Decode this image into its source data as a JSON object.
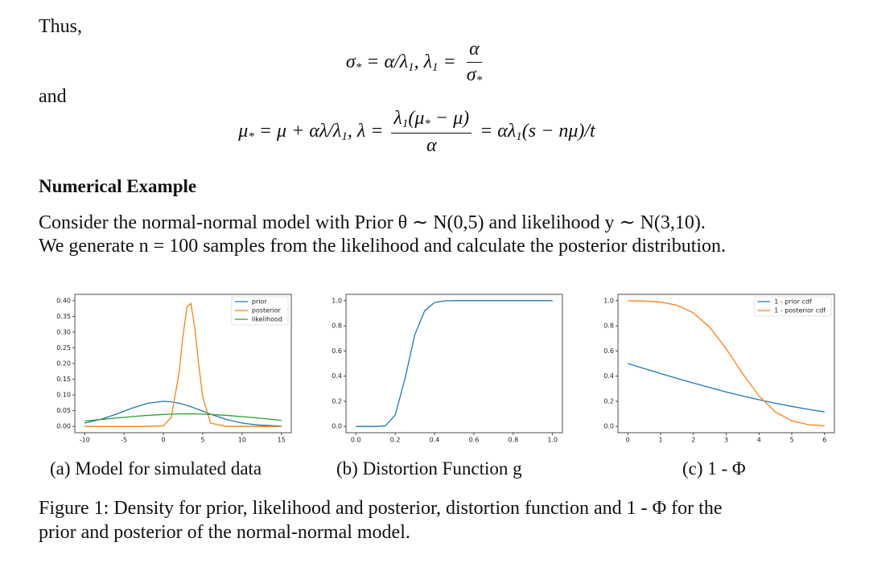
{
  "document": {
    "intro": "Thus,",
    "eq1": [
      {
        "text": "σ"
      },
      {
        "sub": "*"
      },
      {
        "text": " = α/λ"
      },
      {
        "sub": "1"
      },
      {
        "text": ",    λ"
      },
      {
        "sub": "1"
      },
      {
        "text": " = "
      },
      {
        "frac": {
          "num": [
            {
              "text": "α"
            }
          ],
          "den": [
            {
              "text": "σ"
            },
            {
              "sub": "*"
            }
          ]
        }
      }
    ],
    "connector": "and",
    "eq2": [
      {
        "text": "μ"
      },
      {
        "sub": "*"
      },
      {
        "text": " = μ + αλ/λ"
      },
      {
        "sub": "1"
      },
      {
        "text": ",    λ = "
      },
      {
        "frac": {
          "num": [
            {
              "text": "λ"
            },
            {
              "sub": "1"
            },
            {
              "text": "(μ"
            },
            {
              "sub": "*"
            },
            {
              "text": " − μ)"
            }
          ],
          "den": [
            {
              "text": "α"
            }
          ]
        }
      },
      {
        "text": " = αλ"
      },
      {
        "sub": "1"
      },
      {
        "text": "(s − nμ)/t"
      }
    ],
    "heading": "Numerical Example",
    "paragraph": [
      "Consider the normal-normal model with Prior θ ∼ N(0,5) and likelihood y ∼ N(3,10).",
      "We generate n = 100 samples from the likelihood and calculate the posterior distribution."
    ],
    "figure_caption": [
      "Figure 1: Density for prior, likelihood and posterior, distortion function and 1 - Φ for the",
      "prior and posterior of the normal-normal model."
    ]
  },
  "chart_data": [
    {
      "type": "line",
      "caption": "(a) Model for simulated data",
      "x": [
        -10,
        -8,
        -6,
        -4,
        -2,
        0,
        1,
        2,
        2.5,
        3,
        3.5,
        4,
        4.5,
        5,
        6,
        8,
        10,
        12,
        15
      ],
      "series": [
        {
          "name": "prior",
          "color": "#1f77b4",
          "values": [
            0.0108,
            0.0222,
            0.0388,
            0.0579,
            0.0737,
            0.0798,
            0.0782,
            0.0737,
            0.0704,
            0.0667,
            0.0625,
            0.0579,
            0.0532,
            0.0484,
            0.0388,
            0.0222,
            0.0108,
            0.0045,
            0.0009
          ]
        },
        {
          "name": "posterior",
          "color": "#ff7f0e",
          "values": [
            0,
            0,
            0,
            0,
            0,
            0.0017,
            0.0283,
            0.1714,
            0.2897,
            0.3814,
            0.391,
            0.3124,
            0.1943,
            0.094,
            0.0104,
            0,
            0,
            0,
            0
          ]
        },
        {
          "name": "likelihood",
          "color": "#2ca02c",
          "values": [
            0.0171,
            0.0218,
            0.0266,
            0.0312,
            0.0352,
            0.0381,
            0.0391,
            0.0397,
            0.0399,
            0.0399,
            0.0399,
            0.0397,
            0.0395,
            0.0391,
            0.0381,
            0.0352,
            0.0312,
            0.0266,
            0.0194
          ]
        }
      ],
      "xlim": [
        -11.25,
        16.25
      ],
      "xticks": [
        -10,
        -5,
        0,
        5,
        10,
        15
      ],
      "ylim": [
        -0.02,
        0.42
      ],
      "yticks": [
        {
          "value": 0,
          "label": "0.00"
        },
        {
          "value": 0.05,
          "label": "0.05"
        },
        {
          "value": 0.1,
          "label": "0.10"
        },
        {
          "value": 0.15,
          "label": "0.15"
        },
        {
          "value": 0.2,
          "label": "0.20"
        },
        {
          "value": 0.25,
          "label": "0.25"
        },
        {
          "value": 0.3,
          "label": "0.30"
        },
        {
          "value": 0.35,
          "label": "0.35"
        },
        {
          "value": 0.4,
          "label": "0.40"
        }
      ],
      "legend": "upper right"
    },
    {
      "type": "line",
      "caption": "(b) Distortion Function g",
      "x": [
        0,
        0.05,
        0.1,
        0.15,
        0.2,
        0.25,
        0.3,
        0.35,
        0.4,
        0.45,
        0.5,
        0.6,
        0.7,
        0.8,
        0.9,
        1
      ],
      "values": [
        0,
        0,
        0,
        0.005,
        0.09,
        0.38,
        0.73,
        0.92,
        0.985,
        0.998,
        1,
        1,
        1,
        1,
        1,
        1
      ],
      "color": "#1f77b4",
      "xlim": [
        -0.05,
        1.05
      ],
      "xticks": [
        {
          "value": 0,
          "label": "0.0"
        },
        {
          "value": 0.2,
          "label": "0.2"
        },
        {
          "value": 0.4,
          "label": "0.4"
        },
        {
          "value": 0.6,
          "label": "0.6"
        },
        {
          "value": 0.8,
          "label": "0.8"
        },
        {
          "value": 1,
          "label": "1.0"
        }
      ],
      "ylim": [
        -0.05,
        1.05
      ],
      "yticks": [
        {
          "value": 0,
          "label": "0.0"
        },
        {
          "value": 0.2,
          "label": "0.2"
        },
        {
          "value": 0.4,
          "label": "0.4"
        },
        {
          "value": 0.6,
          "label": "0.6"
        },
        {
          "value": 0.8,
          "label": "0.8"
        },
        {
          "value": 1,
          "label": "1.0"
        }
      ]
    },
    {
      "type": "line",
      "caption": "(c) 1 - Φ",
      "x": [
        0,
        0.5,
        1,
        1.5,
        2,
        2.5,
        3,
        3.5,
        4,
        4.5,
        5,
        5.5,
        6
      ],
      "series": [
        {
          "name": "1 - prior cdf",
          "color": "#1f77b4",
          "values": [
            0.5,
            0.46,
            0.421,
            0.382,
            0.345,
            0.309,
            0.274,
            0.242,
            0.212,
            0.184,
            0.159,
            0.136,
            0.115
          ]
        },
        {
          "name": "1 - posterior cdf",
          "color": "#ff7f0e",
          "values": [
            0.9995,
            0.997,
            0.989,
            0.964,
            0.903,
            0.788,
            0.618,
            0.421,
            0.242,
            0.115,
            0.045,
            0.014,
            0.0035
          ]
        }
      ],
      "xlim": [
        -0.3,
        6.3
      ],
      "xticks": [
        0,
        1,
        2,
        3,
        4,
        5,
        6
      ],
      "ylim": [
        -0.05,
        1.05
      ],
      "yticks": [
        {
          "value": 0,
          "label": "0.0"
        },
        {
          "value": 0.2,
          "label": "0.2"
        },
        {
          "value": 0.4,
          "label": "0.4"
        },
        {
          "value": 0.6,
          "label": "0.6"
        },
        {
          "value": 0.8,
          "label": "0.8"
        },
        {
          "value": 1,
          "label": "1.0"
        }
      ],
      "legend": "upper right"
    }
  ]
}
